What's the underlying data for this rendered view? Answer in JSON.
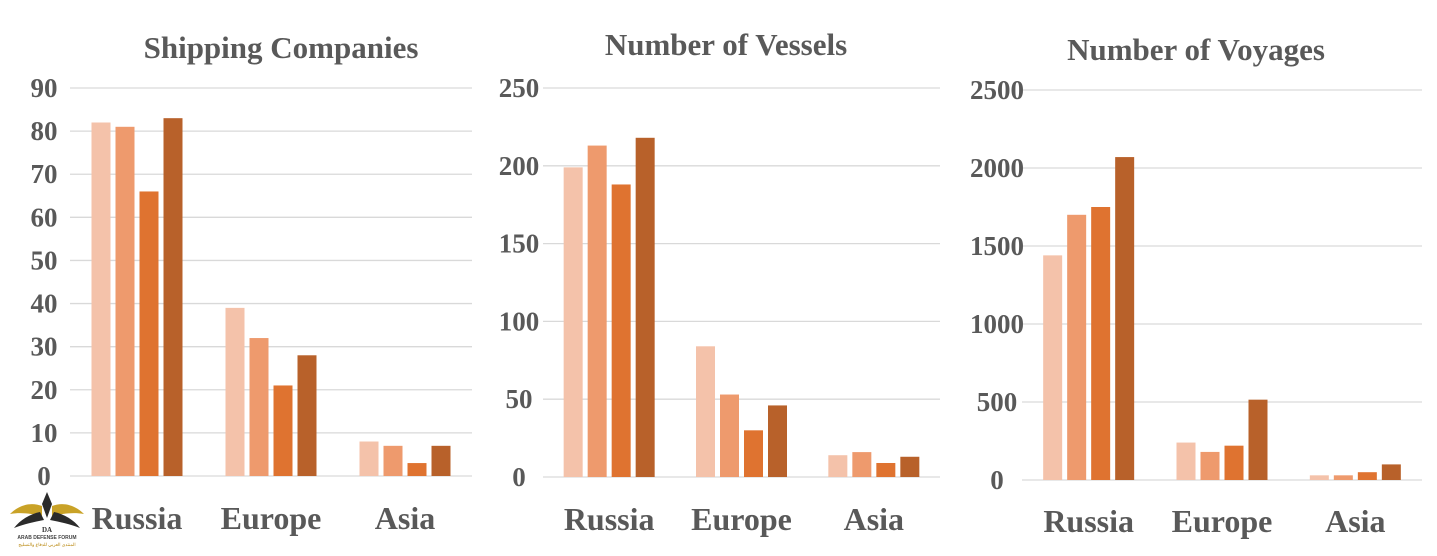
{
  "colors": [
    "#f4c2aa",
    "#ee9a6d",
    "#df7330",
    "#b8612a"
  ],
  "watermark": {
    "line1": "ARAB DEFENSE FORUM",
    "line2": "المنتدى العربي للدفاع والتسليح"
  },
  "chart_data": [
    {
      "type": "bar",
      "title": "Shipping Companies",
      "categories": [
        "Russia",
        "Europe",
        "Asia"
      ],
      "ylim": [
        0,
        90
      ],
      "yticks": [
        0,
        10,
        20,
        30,
        40,
        50,
        60,
        70,
        80,
        90
      ],
      "series": [
        {
          "values": [
            82,
            39,
            8
          ]
        },
        {
          "values": [
            81,
            32,
            7
          ]
        },
        {
          "values": [
            66,
            21,
            3
          ]
        },
        {
          "values": [
            83,
            28,
            7
          ]
        }
      ],
      "grid": true,
      "legend": "none"
    },
    {
      "type": "bar",
      "title": "Number of Vessels",
      "categories": [
        "Russia",
        "Europe",
        "Asia"
      ],
      "ylim": [
        0,
        250
      ],
      "yticks": [
        0,
        50,
        100,
        150,
        200,
        250
      ],
      "series": [
        {
          "values": [
            199,
            84,
            14
          ]
        },
        {
          "values": [
            213,
            53,
            16
          ]
        },
        {
          "values": [
            188,
            30,
            9
          ]
        },
        {
          "values": [
            218,
            46,
            13
          ]
        }
      ],
      "grid": true,
      "legend": "none"
    },
    {
      "type": "bar",
      "title": "Number of Voyages",
      "categories": [
        "Russia",
        "Europe",
        "Asia"
      ],
      "ylim": [
        0,
        2500
      ],
      "yticks": [
        0,
        500,
        1000,
        1500,
        2000,
        2500
      ],
      "series": [
        {
          "values": [
            1440,
            240,
            30
          ]
        },
        {
          "values": [
            1700,
            180,
            30
          ]
        },
        {
          "values": [
            1750,
            220,
            50
          ]
        },
        {
          "values": [
            2070,
            515,
            100
          ]
        }
      ],
      "grid": true,
      "legend": "none"
    }
  ]
}
